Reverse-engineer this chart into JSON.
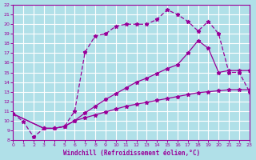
{
  "xlabel": "Windchill (Refroidissement éolien,°C)",
  "bg_color": "#b0e0e8",
  "grid_color": "#ffffff",
  "line_color": "#990099",
  "xmin": 0,
  "xmax": 23,
  "ymin": 8,
  "ymax": 22,
  "line1_x": [
    0,
    1,
    2,
    3,
    4,
    5,
    6,
    7,
    8,
    9,
    10,
    11,
    12,
    13,
    14,
    15,
    16,
    17,
    18,
    19,
    20,
    21,
    22,
    23
  ],
  "line1_y": [
    10.7,
    9.9,
    8.3,
    9.2,
    9.2,
    9.4,
    11.0,
    17.1,
    18.8,
    19.0,
    19.8,
    20.0,
    20.0,
    20.0,
    20.5,
    21.5,
    21.0,
    20.3,
    19.3,
    20.3,
    19.0,
    15.0,
    15.0,
    13.0
  ],
  "line2_x": [
    0,
    3,
    4,
    5,
    6,
    7,
    8,
    9,
    10,
    11,
    12,
    13,
    14,
    15,
    16,
    17,
    18,
    19,
    20,
    21,
    22,
    23
  ],
  "line2_y": [
    10.7,
    9.2,
    9.2,
    9.4,
    10.0,
    10.8,
    11.5,
    12.2,
    12.8,
    13.4,
    14.0,
    14.4,
    14.9,
    15.4,
    15.8,
    17.0,
    18.3,
    17.5,
    15.0,
    15.2,
    15.2,
    15.2
  ],
  "line3_x": [
    0,
    3,
    4,
    5,
    6,
    7,
    8,
    9,
    10,
    11,
    12,
    13,
    14,
    15,
    16,
    17,
    18,
    19,
    20,
    21,
    22,
    23
  ],
  "line3_y": [
    10.7,
    9.2,
    9.2,
    9.4,
    10.0,
    10.3,
    10.6,
    10.9,
    11.2,
    11.5,
    11.7,
    11.9,
    12.1,
    12.3,
    12.5,
    12.7,
    12.9,
    13.0,
    13.1,
    13.2,
    13.2,
    13.2
  ]
}
